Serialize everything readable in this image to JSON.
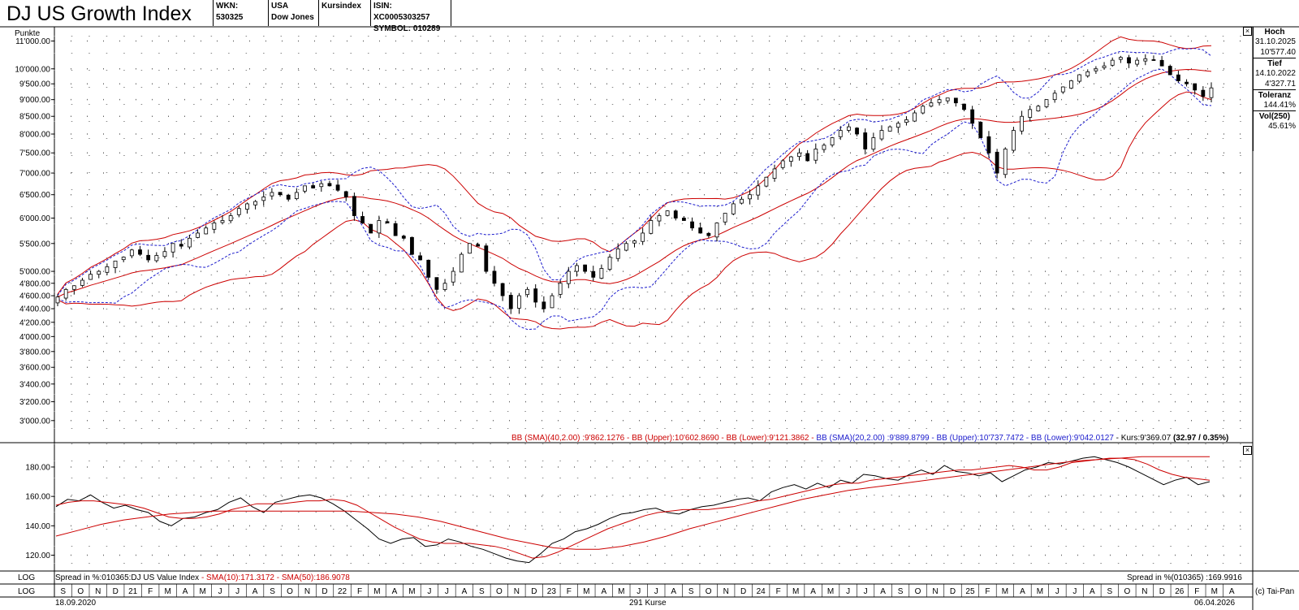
{
  "header": {
    "title": "DJ US Growth Index",
    "wkn": "WKN: 530325",
    "country": "USA",
    "provider": "Dow Jones",
    "kind": "Kursindex",
    "isin": "ISIN: XC0005303257",
    "symbol": "SYMBOL: 010289"
  },
  "side_panel": {
    "hoch_label": "Hoch",
    "hoch_date": "31.10.2025",
    "hoch_value": "10'577.40",
    "tief_label": "Tief",
    "tief_date": "14.10.2022",
    "tief_value": "4'327.71",
    "toleranz_label": "Toleranz",
    "toleranz_value": "144.41%",
    "vol_label": "Vol(250)",
    "vol_value": "45.61%"
  },
  "main_legend": {
    "bb40": "BB (SMA)(40,2.00) :9'862.1276 - BB (Upper):10'602.8690 - BB (Lower):9'121.3862 - ",
    "bb20": "BB (SMA)(20,2.00) :9'889.8799 - BB (Upper):10'737.7472 - BB (Lower):9'042.0127",
    "kurs": " - Kurs:9'369.07 ",
    "kurs_change": "(32.97 / 0.35%)"
  },
  "lower_legend": {
    "left_prefix": "Spread in %:010365:DJ US Value Index ",
    "left_sma": "- SMA(10):171.3172 - SMA(50):186.9078",
    "right": "Spread in %(010365) :169.9916"
  },
  "bottom": {
    "log1": "LOG",
    "log2": "LOG",
    "start_date": "18.09.2020",
    "count": "291 Kurse",
    "end_date": "06.04.2026",
    "copyright": "(c) Tai-Pan",
    "close_glyph": "×"
  },
  "chart_data": [
    {
      "type": "candlestick",
      "title": "DJ US Growth Index",
      "ylabel": "Punkte",
      "y_scale": "log",
      "ylim": [
        2900,
        11200
      ],
      "y_ticks": [
        "3'000.00",
        "3'200.00",
        "3'400.00",
        "3'600.00",
        "3'800.00",
        "4'000.00",
        "4'200.00",
        "4'400.00",
        "4'600.00",
        "4'800.00",
        "5'000.00",
        "5'500.00",
        "6'000.00",
        "6'500.00",
        "7'000.00",
        "7'500.00",
        "8'000.00",
        "8'500.00",
        "9'000.00",
        "9'500.00",
        "10'000.00",
        "11'000.00"
      ],
      "y_tick_values": [
        3000,
        3200,
        3400,
        3600,
        3800,
        4000,
        4200,
        4400,
        4600,
        4800,
        5000,
        5500,
        6000,
        6500,
        7000,
        7500,
        8000,
        8500,
        9000,
        9500,
        10000,
        11000
      ],
      "grid": true,
      "x_axis_labels": [
        "S",
        "O",
        "N",
        "D",
        "21",
        "F",
        "M",
        "A",
        "M",
        "J",
        "J",
        "A",
        "S",
        "O",
        "N",
        "D",
        "22",
        "F",
        "M",
        "A",
        "M",
        "J",
        "J",
        "A",
        "S",
        "O",
        "N",
        "D",
        "23",
        "F",
        "M",
        "A",
        "M",
        "J",
        "J",
        "A",
        "S",
        "O",
        "N",
        "D",
        "24",
        "F",
        "M",
        "A",
        "M",
        "J",
        "J",
        "A",
        "S",
        "O",
        "N",
        "D",
        "25",
        "F",
        "M",
        "A",
        "M",
        "J",
        "J",
        "A",
        "S",
        "O",
        "N",
        "D",
        "26",
        "F",
        "M",
        "A"
      ],
      "close_weekly": [
        4580,
        4700,
        4760,
        4850,
        4950,
        5000,
        5080,
        5180,
        5250,
        5380,
        5300,
        5200,
        5280,
        5350,
        5500,
        5450,
        5600,
        5700,
        5800,
        5900,
        5950,
        6050,
        6200,
        6300,
        6350,
        6450,
        6550,
        6500,
        6400,
        6550,
        6700,
        6650,
        6750,
        6700,
        6600,
        6450,
        6050,
        5900,
        5700,
        5950,
        5900,
        5650,
        5600,
        5300,
        5200,
        4900,
        4700,
        4800,
        5000,
        5300,
        5500,
        5450,
        5000,
        4800,
        4600,
        4400,
        4600,
        4700,
        4500,
        4400,
        4600,
        4800,
        5000,
        5100,
        5000,
        4900,
        5050,
        5250,
        5400,
        5500,
        5550,
        5700,
        5950,
        6050,
        6150,
        6000,
        5950,
        5800,
        5700,
        5650,
        5900,
        6100,
        6300,
        6400,
        6500,
        6700,
        6900,
        7100,
        7300,
        7400,
        7500,
        7300,
        7600,
        7700,
        7900,
        8100,
        8200,
        8000,
        7600,
        7900,
        8100,
        8200,
        8300,
        8400,
        8600,
        8800,
        8900,
        9000,
        9050,
        8900,
        8700,
        8300,
        7900,
        7500,
        7000,
        7600,
        8100,
        8500,
        8700,
        8800,
        9000,
        9200,
        9400,
        9600,
        9800,
        9900,
        10000,
        10100,
        10300,
        10400,
        10200,
        10300,
        10350,
        10300,
        10100,
        9800,
        9600,
        9500,
        9300,
        9100,
        9369
      ]
    },
    {
      "type": "line",
      "title": "Spread in %:010365:DJ US Value Index",
      "ylim": [
        112,
        196
      ],
      "y_ticks": [
        "120.00",
        "140.00",
        "160.00",
        "180.00"
      ],
      "y_tick_values": [
        120,
        140,
        160,
        180
      ],
      "series": [
        {
          "name": "Spread in %",
          "color": "#000000",
          "values": [
            153,
            158,
            157,
            161,
            156,
            152,
            154,
            151,
            149,
            143,
            140,
            145,
            146,
            149,
            151,
            156,
            159,
            153,
            149,
            156,
            158,
            160,
            161,
            159,
            155,
            150,
            144,
            138,
            131,
            128,
            131,
            132,
            126,
            127,
            131,
            129,
            126,
            124,
            121,
            118,
            116,
            115,
            121,
            128,
            131,
            136,
            138,
            141,
            145,
            148,
            149,
            151,
            152,
            149,
            148,
            151,
            153,
            154,
            156,
            158,
            159,
            157,
            163,
            166,
            168,
            165,
            169,
            166,
            171,
            169,
            175,
            174,
            172,
            171,
            175,
            178,
            175,
            181,
            177,
            176,
            174,
            176,
            170,
            174,
            178,
            180,
            183,
            182,
            184,
            186,
            187,
            185,
            183,
            180,
            176,
            172,
            168,
            171,
            173,
            168,
            170
          ]
        },
        {
          "name": "SMA(10)",
          "color": "#cc0000",
          "values": [
            154,
            156,
            157,
            157,
            156,
            155,
            154,
            152,
            149,
            146,
            145,
            145,
            146,
            148,
            151,
            153,
            155,
            155,
            155,
            156,
            157,
            157,
            158,
            157,
            154,
            149,
            144,
            139,
            135,
            131,
            129,
            128,
            128,
            128,
            127,
            126,
            124,
            121,
            118,
            119,
            122,
            126,
            130,
            134,
            138,
            141,
            144,
            147,
            149,
            150,
            151,
            151,
            151,
            152,
            153,
            155,
            157,
            158,
            160,
            162,
            164,
            166,
            168,
            169,
            169,
            171,
            172,
            173,
            174,
            175,
            176,
            177,
            178,
            178,
            179,
            180,
            181,
            180,
            178,
            178,
            180,
            183,
            184,
            185,
            186,
            186,
            185,
            182,
            178,
            175,
            173,
            172,
            171
          ]
        },
        {
          "name": "SMA(50)",
          "color": "#cc0000",
          "values": [
            133,
            137,
            141,
            144,
            146,
            148,
            149,
            150,
            150,
            150,
            150,
            150,
            150,
            150,
            149,
            148,
            146,
            143,
            139,
            135,
            131,
            128,
            125,
            124,
            124,
            126,
            129,
            133,
            138,
            142,
            146,
            150,
            154,
            158,
            161,
            164,
            166,
            168,
            170,
            172,
            174,
            176,
            178,
            180,
            182,
            184,
            185,
            186,
            187,
            187,
            187,
            187
          ]
        }
      ]
    }
  ]
}
